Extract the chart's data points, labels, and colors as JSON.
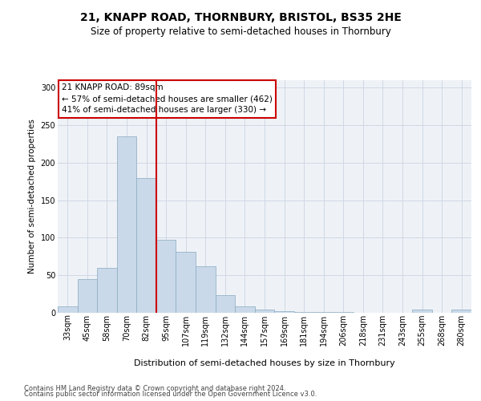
{
  "title1": "21, KNAPP ROAD, THORNBURY, BRISTOL, BS35 2HE",
  "title2": "Size of property relative to semi-detached houses in Thornbury",
  "xlabel": "Distribution of semi-detached houses by size in Thornbury",
  "ylabel": "Number of semi-detached properties",
  "footer1": "Contains HM Land Registry data © Crown copyright and database right 2024.",
  "footer2": "Contains public sector information licensed under the Open Government Licence v3.0.",
  "annotation_title": "21 KNAPP ROAD: 89sqm",
  "annotation_line1": "← 57% of semi-detached houses are smaller (462)",
  "annotation_line2": "41% of semi-detached houses are larger (330) →",
  "bar_color": "#c9d9e9",
  "bar_edge_color": "#8aaabf",
  "vline_color": "#cc0000",
  "annotation_box_color": "#ffffff",
  "annotation_box_edge": "#cc0000",
  "categories": [
    "33sqm",
    "45sqm",
    "58sqm",
    "70sqm",
    "82sqm",
    "95sqm",
    "107sqm",
    "119sqm",
    "132sqm",
    "144sqm",
    "157sqm",
    "169sqm",
    "181sqm",
    "194sqm",
    "206sqm",
    "218sqm",
    "231sqm",
    "243sqm",
    "255sqm",
    "268sqm",
    "280sqm"
  ],
  "values": [
    9,
    45,
    60,
    235,
    180,
    97,
    81,
    62,
    23,
    9,
    4,
    2,
    1,
    1,
    1,
    0,
    0,
    0,
    4,
    0,
    4
  ],
  "ylim": [
    0,
    310
  ],
  "yticks": [
    0,
    50,
    100,
    150,
    200,
    250,
    300
  ],
  "grid_color": "#d0d8e4",
  "bg_color": "#eef2f7",
  "title1_fontsize": 10,
  "title2_fontsize": 8.5,
  "xlabel_fontsize": 8,
  "ylabel_fontsize": 7.5,
  "tick_fontsize": 7,
  "footer_fontsize": 6,
  "ann_fontsize": 7.5
}
